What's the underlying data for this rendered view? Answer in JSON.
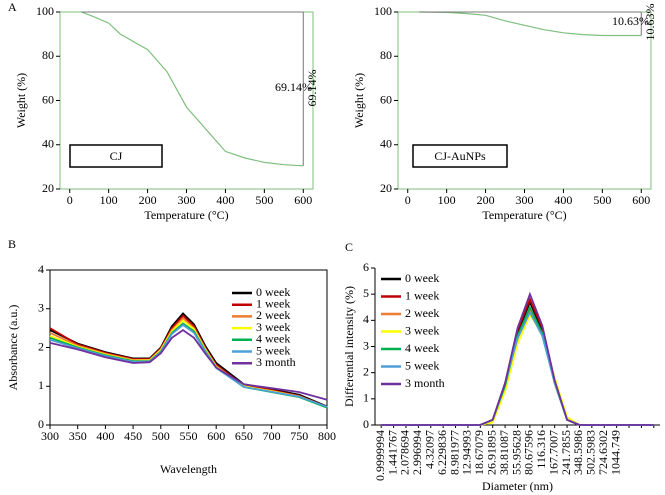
{
  "chart_data": [
    {
      "type": "line",
      "panel": "A",
      "xlabel": "Temperature (°C)",
      "ylabel": "Weight (%)",
      "label": "CJ",
      "annotations": [
        "69.14%",
        "69.14%"
      ],
      "x": [
        30,
        60,
        100,
        130,
        200,
        250,
        300,
        350,
        400,
        450,
        500,
        550,
        600
      ],
      "series": [
        {
          "color": "#7fbf7f",
          "values": [
            100,
            98,
            95,
            90,
            83,
            73,
            57,
            47,
            37,
            34,
            32,
            31,
            30.5
          ]
        }
      ],
      "xlim": [
        -25,
        625
      ],
      "ylim": [
        20,
        100
      ],
      "xticks": [
        0,
        100,
        200,
        300,
        400,
        500,
        600
      ],
      "yticks": [
        20,
        40,
        60,
        80,
        100
      ]
    },
    {
      "type": "line",
      "xlabel": "Temperature (°C)",
      "ylabel": "Weight (%)",
      "label": "CJ-AuNPs",
      "annotations": [
        "10.63%",
        "10.63%"
      ],
      "x": [
        30,
        100,
        150,
        200,
        250,
        300,
        350,
        400,
        450,
        500,
        600
      ],
      "series": [
        {
          "color": "#7fbf7f",
          "values": [
            100,
            99.8,
            99.3,
            98.5,
            96,
            94,
            92,
            90.6,
            89.8,
            89.4,
            89.37
          ]
        }
      ],
      "xlim": [
        -25,
        625
      ],
      "ylim": [
        20,
        100
      ],
      "xticks": [
        0,
        100,
        200,
        300,
        400,
        500,
        600
      ],
      "yticks": [
        20,
        40,
        60,
        80,
        100
      ]
    },
    {
      "type": "line",
      "panel": "B",
      "xlabel": "Wavelength",
      "ylabel": "Absorbance (a.u.)",
      "legend": "upper right",
      "x": [
        300,
        350,
        400,
        450,
        480,
        500,
        520,
        540,
        560,
        580,
        600,
        650,
        700,
        750,
        800
      ],
      "series": [
        {
          "name": "0 week",
          "color": "#000000",
          "values": [
            2.45,
            2.1,
            1.88,
            1.72,
            1.72,
            2.0,
            2.55,
            2.88,
            2.6,
            2.05,
            1.6,
            1.05,
            0.92,
            0.78,
            0.48
          ]
        },
        {
          "name": "1 week",
          "color": "#c00000",
          "values": [
            2.5,
            2.08,
            1.86,
            1.7,
            1.7,
            1.98,
            2.5,
            2.82,
            2.55,
            2.0,
            1.55,
            1.02,
            0.9,
            0.75,
            0.47
          ]
        },
        {
          "name": "2 week",
          "color": "#ed7d31",
          "values": [
            2.38,
            2.05,
            1.84,
            1.68,
            1.68,
            1.95,
            2.45,
            2.75,
            2.5,
            1.98,
            1.52,
            1.0,
            0.88,
            0.74,
            0.46
          ]
        },
        {
          "name": "3 week",
          "color": "#ffff00",
          "values": [
            2.3,
            2.02,
            1.82,
            1.66,
            1.67,
            1.93,
            2.42,
            2.7,
            2.47,
            1.95,
            1.5,
            1.0,
            0.87,
            0.73,
            0.46
          ]
        },
        {
          "name": "4 week",
          "color": "#00b050",
          "values": [
            2.25,
            2.0,
            1.8,
            1.65,
            1.65,
            1.9,
            2.38,
            2.62,
            2.42,
            1.92,
            1.48,
            0.98,
            0.85,
            0.72,
            0.45
          ]
        },
        {
          "name": "5 week",
          "color": "#4f9fd8",
          "values": [
            2.2,
            1.98,
            1.78,
            1.63,
            1.64,
            1.88,
            2.35,
            2.58,
            2.38,
            1.9,
            1.47,
            0.98,
            0.86,
            0.73,
            0.47
          ]
        },
        {
          "name": "3 month",
          "color": "#7030a0",
          "values": [
            2.12,
            1.95,
            1.75,
            1.6,
            1.62,
            1.85,
            2.25,
            2.45,
            2.25,
            1.85,
            1.48,
            1.05,
            0.95,
            0.85,
            0.65
          ]
        }
      ],
      "xlim": [
        300,
        800
      ],
      "ylim": [
        0,
        4
      ],
      "xticks": [
        300,
        350,
        400,
        450,
        500,
        550,
        600,
        650,
        700,
        750,
        800
      ],
      "yticks": [
        0,
        1,
        2,
        3,
        4
      ]
    },
    {
      "type": "line",
      "panel": "C",
      "xlabel": "Diameter  (nm)",
      "ylabel": "Differential intensity (%)",
      "legend": "upper left",
      "categories": [
        "0.9999994",
        "1.441767",
        "2.078694",
        "2.996994",
        "4.32097",
        "6.229836",
        "8.981977",
        "12.94993",
        "18.67079",
        "26.91895",
        "38.81087",
        "55.95628",
        "80.67596",
        "116.316",
        "167.7007",
        "241.7855",
        "348.5986",
        "502.5983",
        "724.6302",
        "1044.749",
        null,
        null,
        null
      ],
      "series": [
        {
          "name": "0 week",
          "color": "#000000",
          "values": [
            0,
            0,
            0,
            0,
            0,
            0,
            0,
            0,
            0,
            0.2,
            1.5,
            3.5,
            4.7,
            3.6,
            1.6,
            0.2,
            0,
            0,
            0,
            0,
            0,
            0,
            0
          ]
        },
        {
          "name": "1 week",
          "color": "#c00000",
          "values": [
            0,
            0,
            0,
            0,
            0,
            0,
            0,
            0,
            0,
            0.2,
            1.6,
            3.6,
            4.8,
            3.7,
            1.7,
            0.2,
            0,
            0,
            0,
            0,
            0,
            0,
            0
          ]
        },
        {
          "name": "2 week",
          "color": "#ed7d31",
          "values": [
            0,
            0,
            0,
            0,
            0,
            0,
            0,
            0,
            0,
            0.2,
            1.5,
            3.3,
            4.4,
            3.5,
            1.6,
            0.2,
            0,
            0,
            0,
            0,
            0,
            0,
            0
          ]
        },
        {
          "name": "3 week",
          "color": "#ffff00",
          "values": [
            0,
            0,
            0,
            0,
            0,
            0,
            0,
            0,
            0,
            0.1,
            1.3,
            3.1,
            4.2,
            3.5,
            1.8,
            0.3,
            0,
            0,
            0,
            0,
            0,
            0,
            0
          ]
        },
        {
          "name": "4 week",
          "color": "#00b050",
          "values": [
            0,
            0,
            0,
            0,
            0,
            0,
            0,
            0,
            0,
            0.2,
            1.5,
            3.4,
            4.5,
            3.5,
            1.6,
            0.2,
            0,
            0,
            0,
            0,
            0,
            0,
            0
          ]
        },
        {
          "name": "5 week",
          "color": "#4f9fd8",
          "values": [
            0,
            0,
            0,
            0,
            0,
            0,
            0,
            0,
            0,
            0.2,
            1.6,
            3.3,
            4.3,
            3.4,
            1.6,
            0.2,
            0,
            0,
            0,
            0,
            0,
            0,
            0
          ]
        },
        {
          "name": "3 month",
          "color": "#7030a0",
          "values": [
            0,
            0,
            0,
            0,
            0,
            0,
            0,
            0,
            0,
            0.2,
            1.6,
            3.7,
            5.0,
            3.8,
            1.7,
            0.2,
            0,
            0,
            0,
            0,
            0,
            0,
            0
          ]
        }
      ],
      "ylim": [
        0,
        6
      ],
      "yticks": [
        0,
        1,
        2,
        3,
        4,
        5,
        6
      ]
    }
  ]
}
